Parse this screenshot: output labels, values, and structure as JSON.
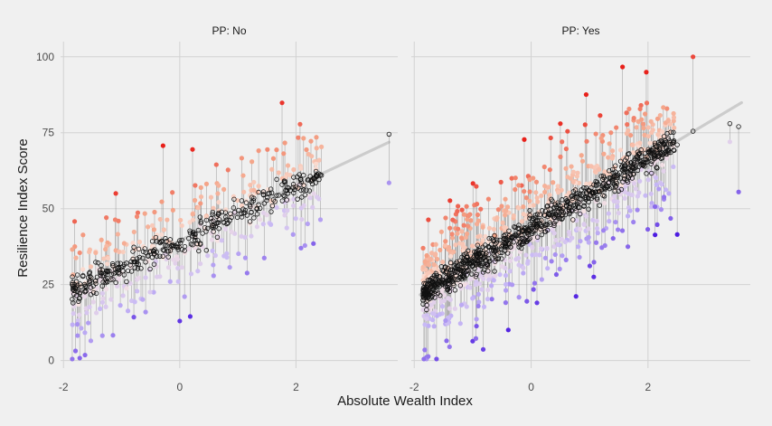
{
  "chart_data": {
    "type": "scatter",
    "title": "",
    "xlabel": "Absolute Wealth Index",
    "ylabel": "Resilience Index Score",
    "xlim": [
      -2.05,
      3.75
    ],
    "ylim": [
      -2.5,
      105
    ],
    "x_ticks": [
      "-2",
      "0",
      "2"
    ],
    "x_tick_values": [
      -2,
      0,
      2
    ],
    "y_ticks": [
      "0",
      "25",
      "50",
      "75",
      "100"
    ],
    "y_tick_values": [
      0,
      25,
      50,
      75,
      100
    ],
    "grid": true,
    "legend": "none",
    "description": "Lollipop residual plot: observed points colored by residual (red above, purple below fit), open circles are fitted values, segments connect them; grey regression line.",
    "colors": {
      "high": "#e8201a",
      "mid_high": "#f4a488",
      "mid": "#fbe7e0",
      "mid_low": "#c7b8f5",
      "low": "#4a18e0",
      "segment": "#7f7f7f",
      "fit_line": "#cccccc",
      "grid": "#d2d2d2"
    },
    "facets": [
      {
        "strip": "PP: No",
        "fit": {
          "intercept": 39.5,
          "slope": 9.0,
          "x_range": [
            -1.85,
            3.6
          ]
        },
        "n_points": 340,
        "points": [
          {
            "x": 3.6,
            "y": 58.5,
            "fitted": 74.5
          },
          {
            "x": 0.22,
            "y": 69.5,
            "fitted": 41.0
          },
          {
            "x": -1.1,
            "y": 55.0,
            "fitted": 29.0
          },
          {
            "x": -1.72,
            "y": 0.8,
            "fitted": 22.0
          },
          {
            "x": 2.35,
            "y": 73.5,
            "fitted": 60.5
          },
          {
            "x": 2.3,
            "y": 38.5,
            "fitted": 60.0
          },
          {
            "x": 2.2,
            "y": 45.0,
            "fitted": 59.5
          },
          {
            "x": 1.95,
            "y": 41.5,
            "fitted": 57.0
          },
          {
            "x": 0.18,
            "y": 14.5,
            "fitted": 42.0
          },
          {
            "x": 0.0,
            "y": 13.0,
            "fitted": 39.5
          }
        ]
      },
      {
        "strip": "PP: Yes",
        "fit": {
          "intercept": 43.5,
          "slope": 11.5,
          "x_range": [
            -1.9,
            3.6
          ]
        },
        "n_points": 800,
        "points": [
          {
            "x": 2.77,
            "y": 100.0,
            "fitted": 75.5
          },
          {
            "x": 3.55,
            "y": 55.5,
            "fitted": 77.0
          },
          {
            "x": 3.4,
            "y": 72.0,
            "fitted": 78.0
          },
          {
            "x": 1.88,
            "y": 84.0,
            "fitted": 64.5
          },
          {
            "x": -1.82,
            "y": 3.5,
            "fitted": 22.5
          },
          {
            "x": 2.5,
            "y": 41.5,
            "fitted": 71.0
          },
          {
            "x": 0.5,
            "y": 78.0,
            "fitted": 50.0
          },
          {
            "x": 0.1,
            "y": 19.0,
            "fitted": 45.0
          }
        ]
      }
    ]
  }
}
